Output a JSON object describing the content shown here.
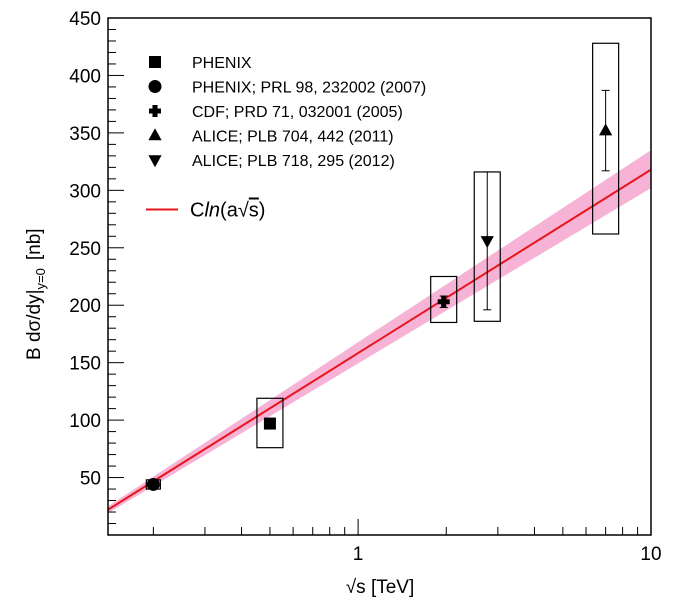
{
  "chart_data": {
    "type": "scatter",
    "title": "",
    "xlabel": {
      "prefix": "√s",
      "text": " [TeV]"
    },
    "ylabel": {
      "main": "B dσ/dy",
      "sub": "y=0",
      "unit": "[nb]"
    },
    "x_scale": "log",
    "xlim": [
      0.14,
      10
    ],
    "ylim": [
      0,
      450
    ],
    "xticks": [
      {
        "value": 1,
        "label": "1"
      },
      {
        "value": 10,
        "label": "10"
      }
    ],
    "yticks": [
      {
        "value": 50,
        "label": "50"
      },
      {
        "value": 100,
        "label": "100"
      },
      {
        "value": 150,
        "label": "150"
      },
      {
        "value": 200,
        "label": "200"
      },
      {
        "value": 250,
        "label": "250"
      },
      {
        "value": 300,
        "label": "300"
      },
      {
        "value": 350,
        "label": "350"
      },
      {
        "value": 400,
        "label": "400"
      },
      {
        "value": 450,
        "label": "450"
      }
    ],
    "grid": false,
    "legend_position": "top-left",
    "series": [
      {
        "name": "PHENIX",
        "marker": "square",
        "points": [
          {
            "x": 0.5,
            "y": 97,
            "syst_low": 76,
            "syst_high": 119,
            "stat": 4
          }
        ]
      },
      {
        "name": "PHENIX; PRL 98, 232002 (2007)",
        "marker": "circle",
        "points": [
          {
            "x": 0.2,
            "y": 44,
            "syst_low": 40,
            "syst_high": 48,
            "stat": 2
          }
        ]
      },
      {
        "name": "CDF; PRD 71, 032001 (2005)",
        "marker": "cross",
        "points": [
          {
            "x": 1.96,
            "y": 203,
            "syst_low": 185,
            "syst_high": 225,
            "stat": 5
          }
        ]
      },
      {
        "name": "ALICE; PLB 704, 442 (2011)",
        "marker": "triangle-up",
        "points": [
          {
            "x": 7,
            "y": 352,
            "syst_low": 262,
            "syst_high": 428,
            "stat": 35
          }
        ]
      },
      {
        "name": "ALICE; PLB 718, 295 (2012)",
        "marker": "triangle-down",
        "points": [
          {
            "x": 2.76,
            "y": 256,
            "syst_low": 186,
            "syst_high": 316,
            "stat": 60
          }
        ]
      }
    ],
    "fit": {
      "label": {
        "c": "C",
        "ln": "ln",
        "rest": "(a",
        "arg": "s",
        "close": ")"
      },
      "color": "#e8141c",
      "band_color": "#f4a6cf",
      "x_range": [
        0.14,
        10
      ],
      "y_at_xmin": 22,
      "y_at_xmax": 318,
      "band_low_at_xmin": 19,
      "band_high_at_xmin": 25,
      "band_low_at_xmax": 302,
      "band_high_at_xmax": 335
    }
  }
}
